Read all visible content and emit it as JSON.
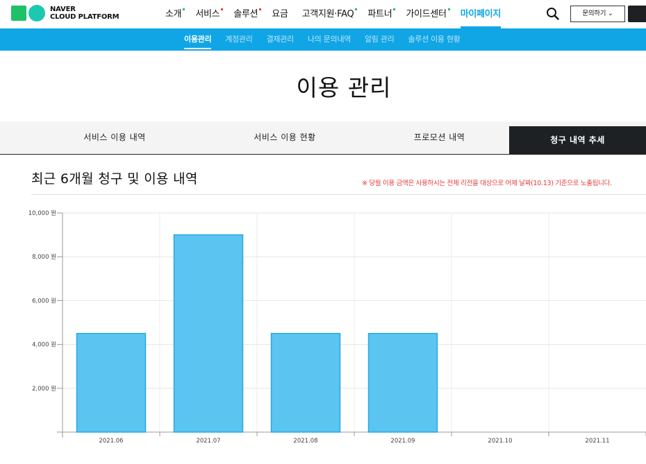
{
  "logo": {
    "line1": "NAVER",
    "line2": "CLOUD PLATFORM"
  },
  "gnb": [
    {
      "label": "소개",
      "dot": "green"
    },
    {
      "label": "서비스",
      "dot": "red"
    },
    {
      "label": "솔루션",
      "dot": "red"
    },
    {
      "label": "요금",
      "dot": ""
    },
    {
      "label": "고객지원·FAQ",
      "dot": "green"
    },
    {
      "label": "파트너",
      "dot": "green"
    },
    {
      "label": "가이드센터",
      "dot": "green"
    },
    {
      "label": "마이페이지",
      "dot": "",
      "active": true
    }
  ],
  "header": {
    "inquiry_label": "문의하기 ⌄"
  },
  "subnav": [
    {
      "label": "이용관리",
      "active": true
    },
    {
      "label": "계정관리"
    },
    {
      "label": "결제관리"
    },
    {
      "label": "나의 문의내역"
    },
    {
      "label": "알림 관리"
    },
    {
      "label": "솔루션 이용 현황"
    }
  ],
  "page_title": "이용 관리",
  "tabs": [
    {
      "label": "서비스 이용 내역"
    },
    {
      "label": "서비스 이용 현황"
    },
    {
      "label": "프로모션 내역"
    },
    {
      "label": "청구 내역 추세",
      "active": true
    }
  ],
  "section": {
    "title": "최근 6개월 청구 및 이용 내역",
    "notice": "※ 당월 이용 금액은 사용하시는 전체 리전을 대상으로 어제 날짜(10.13) 기준으로 노출됩니다."
  },
  "colors": {
    "accent": "#10a5e5",
    "bar_fill": "#5bc4f1",
    "bar_stroke": "#27a9e1",
    "notice": "#e53935"
  },
  "chart_data": {
    "type": "bar",
    "categories": [
      "2021.06",
      "2021.07",
      "2021.08",
      "2021.09",
      "2021.10",
      "2021.11"
    ],
    "values": [
      4500,
      9000,
      4500,
      4500,
      null,
      null
    ],
    "ylim": [
      0,
      10000
    ],
    "yticks": [
      {
        "value": 2000,
        "label": "2,000 원"
      },
      {
        "value": 4000,
        "label": "4,000 원"
      },
      {
        "value": 6000,
        "label": "6,000 원"
      },
      {
        "value": 8000,
        "label": "8,000 원"
      },
      {
        "value": 10000,
        "label": "10,000 원"
      }
    ],
    "grid": true,
    "title": "",
    "xlabel": "",
    "ylabel": ""
  }
}
